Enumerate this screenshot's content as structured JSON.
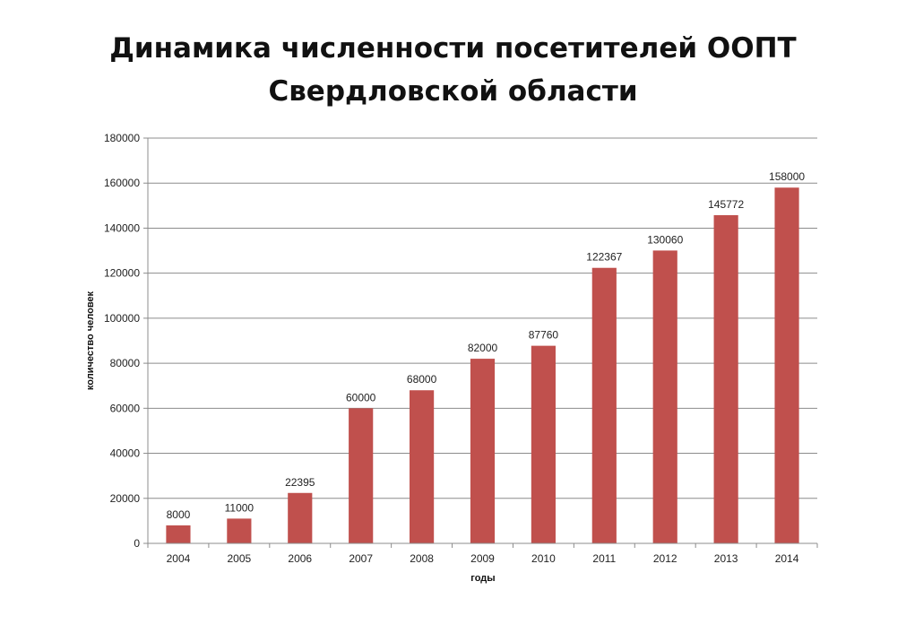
{
  "chart_data": {
    "type": "bar",
    "title_lines": [
      "Динамика численности посетителей ООПТ",
      "Свердловской области"
    ],
    "xlabel": "годы",
    "ylabel": "количество человек",
    "categories": [
      "2004",
      "2005",
      "2006",
      "2007",
      "2008",
      "2009",
      "2010",
      "2011",
      "2012",
      "2013",
      "2014"
    ],
    "values": [
      8000,
      11000,
      22395,
      60000,
      68000,
      82000,
      87760,
      122367,
      130060,
      145772,
      158000
    ],
    "data_labels": [
      "8000",
      "11000",
      "22395",
      "60000",
      "68000",
      "82000",
      "87760",
      "122367",
      "130060",
      "145772",
      "158000"
    ],
    "ylim": [
      0,
      180000
    ],
    "yticks": [
      0,
      20000,
      40000,
      60000,
      80000,
      100000,
      120000,
      140000,
      160000,
      180000
    ],
    "ytick_labels": [
      "0",
      "20000",
      "40000",
      "60000",
      "80000",
      "100000",
      "120000",
      "140000",
      "160000",
      "180000"
    ],
    "grid": true,
    "legend": "none",
    "bar_color": "#C0504D",
    "grid_color": "#8C8C8C"
  }
}
